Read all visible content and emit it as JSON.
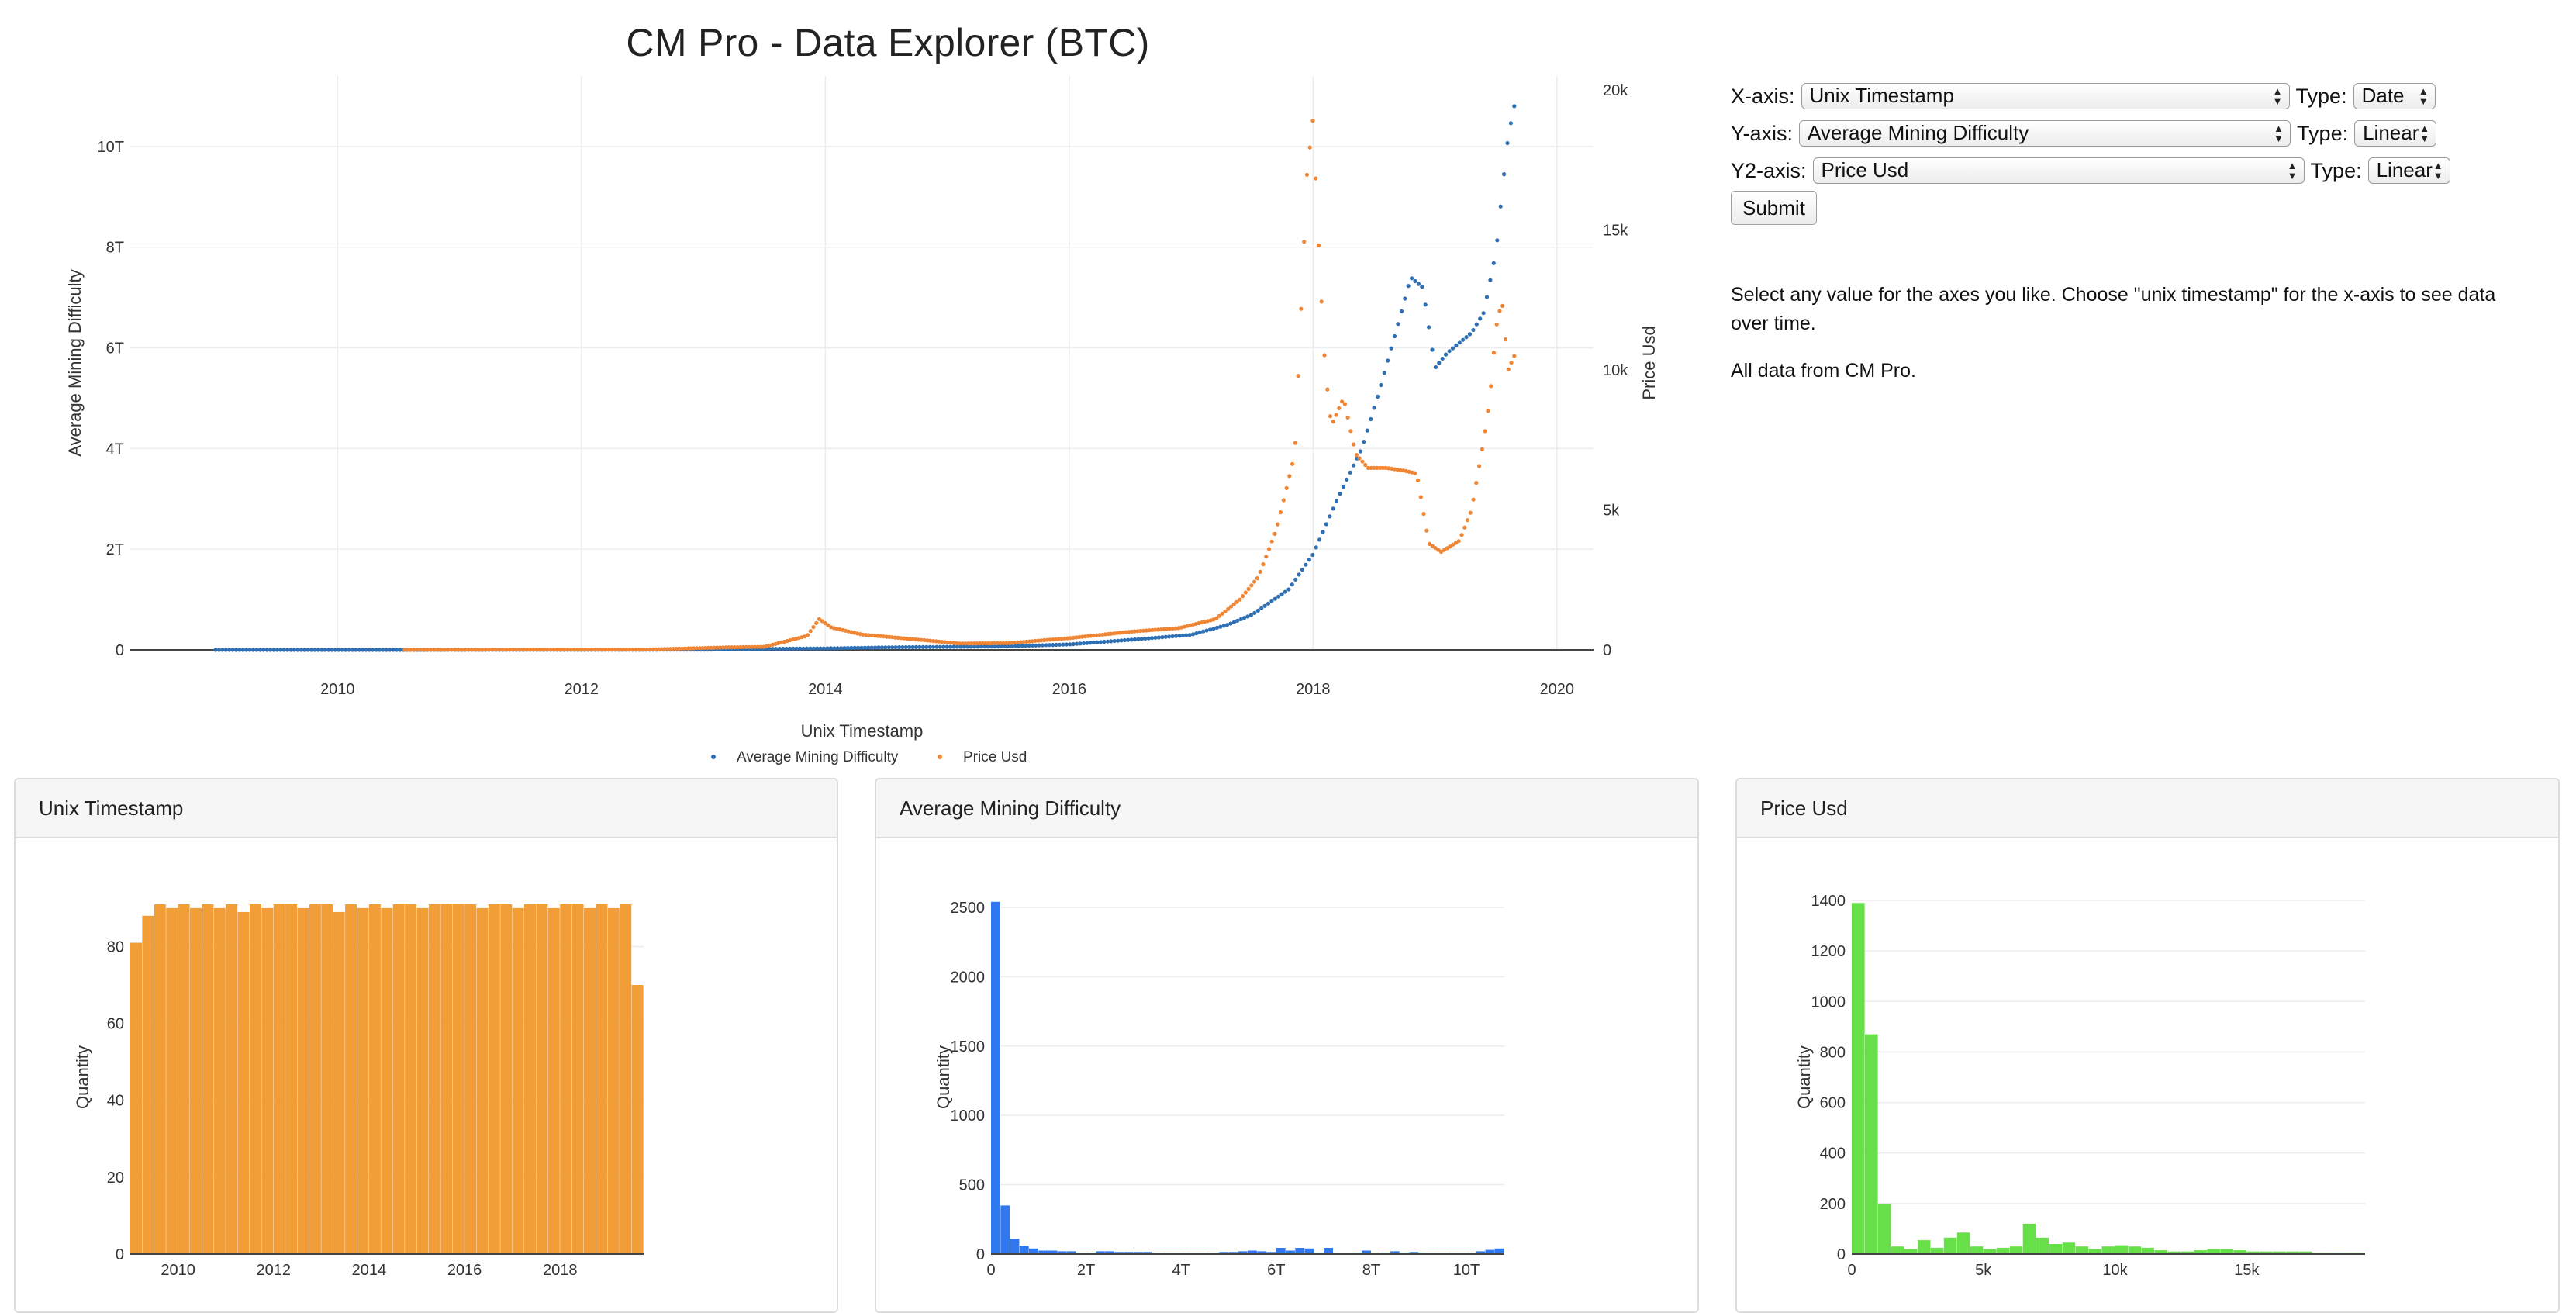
{
  "page": {
    "title": "CM Pro - Data Explorer (BTC)"
  },
  "colors": {
    "difficulty": "#2e6fb4",
    "price": "#ef8636",
    "hist_timestamp": "#f19d38",
    "hist_difficulty": "#2f78ef",
    "hist_price": "#67df48",
    "grid": "#ececec"
  },
  "controls": {
    "x_axis": {
      "label": "X-axis:",
      "value": "Unix Timestamp",
      "type_label": "Type:",
      "type_value": "Date"
    },
    "y_axis": {
      "label": "Y-axis:",
      "value": "Average Mining Difficulty",
      "type_label": "Type:",
      "type_value": "Linear"
    },
    "y2_axis": {
      "label": "Y2-axis:",
      "value": "Price Usd",
      "type_label": "Type:",
      "type_value": "Linear"
    },
    "submit_label": "Submit"
  },
  "info": {
    "text1": "Select any value for the axes you like. Choose \"unix timestamp\" for the x-axis to see data over time.",
    "text2": "All data from CM Pro."
  },
  "chart_data": [
    {
      "type": "scatter",
      "title": "CM Pro - Data Explorer (BTC)",
      "xlabel": "Unix Timestamp",
      "ylabel": "Average Mining Difficulty",
      "y2label": "Price Usd",
      "xlim": [
        2008.3,
        2020.3
      ],
      "ylim": [
        0,
        11.4
      ],
      "y2lim": [
        0,
        20500
      ],
      "x_ticks": [
        "2010",
        "2012",
        "2014",
        "2016",
        "2018",
        "2020"
      ],
      "y_ticks": [
        "0",
        "2T",
        "4T",
        "6T",
        "8T",
        "10T"
      ],
      "y2_ticks": [
        "0",
        "5k",
        "10k",
        "15k",
        "20k"
      ],
      "legend": "bottom-center",
      "series": [
        {
          "name": "Average Mining Difficulty",
          "axis": "y",
          "unit_note": "trillions",
          "points": [
            [
              2009.0,
              0
            ],
            [
              2010.0,
              0
            ],
            [
              2011.0,
              0.001
            ],
            [
              2012.0,
              0.002
            ],
            [
              2013.0,
              0.005
            ],
            [
              2013.5,
              0.02
            ],
            [
              2014.0,
              0.03
            ],
            [
              2014.5,
              0.05
            ],
            [
              2015.0,
              0.06
            ],
            [
              2015.5,
              0.07
            ],
            [
              2016.0,
              0.11
            ],
            [
              2016.5,
              0.2
            ],
            [
              2017.0,
              0.3
            ],
            [
              2017.3,
              0.5
            ],
            [
              2017.5,
              0.7
            ],
            [
              2017.8,
              1.2
            ],
            [
              2018.0,
              1.9
            ],
            [
              2018.2,
              3.0
            ],
            [
              2018.4,
              4.0
            ],
            [
              2018.55,
              5.2
            ],
            [
              2018.7,
              6.5
            ],
            [
              2018.8,
              7.4
            ],
            [
              2018.9,
              7.2
            ],
            [
              2019.0,
              5.6
            ],
            [
              2019.1,
              5.9
            ],
            [
              2019.2,
              6.1
            ],
            [
              2019.3,
              6.3
            ],
            [
              2019.4,
              6.7
            ],
            [
              2019.5,
              7.9
            ],
            [
              2019.55,
              9.1
            ],
            [
              2019.6,
              10.2
            ],
            [
              2019.65,
              10.8
            ]
          ]
        },
        {
          "name": "Price Usd",
          "axis": "y2",
          "points": [
            [
              2010.55,
              0
            ],
            [
              2011.5,
              10
            ],
            [
              2012.5,
              10
            ],
            [
              2013.2,
              90
            ],
            [
              2013.5,
              110
            ],
            [
              2013.85,
              500
            ],
            [
              2013.95,
              1100
            ],
            [
              2014.05,
              800
            ],
            [
              2014.3,
              550
            ],
            [
              2014.8,
              350
            ],
            [
              2015.1,
              230
            ],
            [
              2015.5,
              240
            ],
            [
              2016.0,
              420
            ],
            [
              2016.5,
              650
            ],
            [
              2016.9,
              780
            ],
            [
              2017.2,
              1100
            ],
            [
              2017.4,
              1800
            ],
            [
              2017.55,
              2600
            ],
            [
              2017.7,
              4300
            ],
            [
              2017.85,
              7000
            ],
            [
              2017.95,
              17000
            ],
            [
              2018.0,
              19000
            ],
            [
              2018.05,
              14000
            ],
            [
              2018.1,
              10000
            ],
            [
              2018.15,
              8000
            ],
            [
              2018.25,
              9000
            ],
            [
              2018.35,
              7000
            ],
            [
              2018.45,
              6500
            ],
            [
              2018.6,
              6500
            ],
            [
              2018.75,
              6400
            ],
            [
              2018.85,
              6300
            ],
            [
              2018.95,
              3800
            ],
            [
              2019.05,
              3500
            ],
            [
              2019.2,
              3900
            ],
            [
              2019.3,
              5000
            ],
            [
              2019.4,
              7500
            ],
            [
              2019.45,
              9000
            ],
            [
              2019.5,
              11500
            ],
            [
              2019.55,
              12500
            ],
            [
              2019.6,
              10000
            ],
            [
              2019.65,
              10500
            ]
          ]
        }
      ]
    },
    {
      "type": "bar",
      "title": "Unix Timestamp",
      "xlabel": "",
      "ylabel": "Quantity",
      "xlim": [
        2009.0,
        2019.75
      ],
      "ylim": [
        0,
        92
      ],
      "x_ticks": [
        "2010",
        "2012",
        "2014",
        "2016",
        "2018"
      ],
      "y_ticks": [
        "0",
        "20",
        "40",
        "60",
        "80"
      ],
      "bin_start": 2009.0,
      "bin_width": 0.25,
      "values": [
        81,
        88,
        91,
        90,
        91,
        90,
        91,
        90,
        91,
        89,
        91,
        90,
        91,
        91,
        90,
        91,
        91,
        89,
        91,
        90,
        91,
        90,
        91,
        91,
        90,
        91,
        91,
        91,
        91,
        90,
        91,
        91,
        90,
        91,
        91,
        90,
        91,
        91,
        90,
        91,
        90,
        91,
        70
      ]
    },
    {
      "type": "bar",
      "title": "Average Mining Difficulty",
      "xlabel": "",
      "ylabel": "Quantity",
      "xlim": [
        0,
        10.8
      ],
      "ylim": [
        0,
        2550
      ],
      "x_ticks": [
        "0",
        "2T",
        "4T",
        "6T",
        "8T",
        "10T"
      ],
      "y_ticks": [
        "0",
        "500",
        "1000",
        "1500",
        "2000",
        "2500"
      ],
      "bin_start": 0,
      "bin_width": 0.2,
      "values": [
        2540,
        350,
        110,
        60,
        40,
        25,
        25,
        20,
        20,
        10,
        10,
        20,
        20,
        15,
        15,
        15,
        15,
        10,
        10,
        10,
        10,
        10,
        10,
        10,
        15,
        15,
        20,
        25,
        20,
        15,
        45,
        25,
        45,
        40,
        10,
        45,
        5,
        5,
        10,
        25,
        5,
        10,
        20,
        10,
        15,
        10,
        10,
        10,
        10,
        10,
        10,
        20,
        30,
        40
      ]
    },
    {
      "type": "bar",
      "title": "Price Usd",
      "xlabel": "",
      "ylabel": "Quantity",
      "xlim": [
        0,
        19500
      ],
      "ylim": [
        0,
        1400
      ],
      "x_ticks": [
        "0",
        "5k",
        "10k",
        "15k"
      ],
      "y_ticks": [
        "0",
        "200",
        "400",
        "600",
        "800",
        "1000",
        "1200",
        "1400"
      ],
      "bin_start": 0,
      "bin_width": 500,
      "values": [
        1390,
        870,
        200,
        30,
        20,
        55,
        25,
        65,
        85,
        30,
        20,
        25,
        30,
        120,
        65,
        40,
        45,
        30,
        20,
        30,
        35,
        30,
        25,
        15,
        10,
        10,
        15,
        20,
        20,
        15,
        10,
        10,
        10,
        10,
        10,
        5,
        5,
        5,
        5
      ]
    }
  ]
}
